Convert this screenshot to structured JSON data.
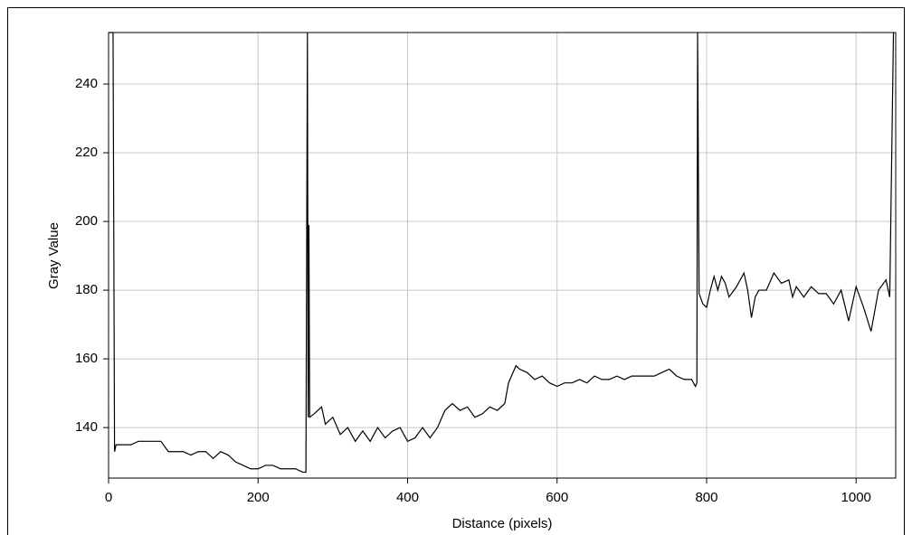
{
  "chart_data": {
    "type": "line",
    "x_label": "Distance (pixels)",
    "y_label": "Gray Value",
    "x": [
      0,
      6,
      7,
      8,
      10,
      30,
      40,
      70,
      80,
      100,
      110,
      120,
      130,
      140,
      150,
      160,
      170,
      180,
      190,
      200,
      210,
      220,
      230,
      240,
      250,
      260,
      264,
      266,
      267,
      268,
      269,
      275,
      285,
      290,
      300,
      310,
      320,
      330,
      340,
      350,
      360,
      370,
      380,
      390,
      400,
      410,
      420,
      430,
      440,
      450,
      460,
      470,
      480,
      490,
      500,
      510,
      520,
      530,
      535,
      545,
      550,
      560,
      570,
      580,
      590,
      600,
      610,
      620,
      630,
      640,
      650,
      660,
      670,
      680,
      690,
      700,
      710,
      720,
      730,
      740,
      750,
      760,
      770,
      780,
      785,
      787,
      788,
      789,
      790,
      795,
      800,
      805,
      810,
      815,
      820,
      825,
      830,
      840,
      850,
      855,
      860,
      865,
      870,
      880,
      890,
      900,
      910,
      915,
      920,
      930,
      940,
      950,
      960,
      970,
      980,
      990,
      1000,
      1010,
      1020,
      1030,
      1040,
      1045,
      1050
    ],
    "values": [
      255,
      255,
      195,
      133,
      135,
      135,
      136,
      136,
      133,
      133,
      132,
      133,
      133,
      131,
      133,
      132,
      130,
      129,
      128,
      128,
      129,
      129,
      128,
      128,
      128,
      127,
      127,
      255,
      143,
      199,
      143,
      144,
      146,
      141,
      143,
      138,
      140,
      136,
      139,
      136,
      140,
      137,
      139,
      140,
      136,
      137,
      140,
      137,
      140,
      145,
      147,
      145,
      146,
      143,
      144,
      146,
      145,
      147,
      153,
      158,
      157,
      156,
      154,
      155,
      153,
      152,
      153,
      153,
      154,
      153,
      155,
      154,
      154,
      155,
      154,
      155,
      155,
      155,
      155,
      156,
      157,
      155,
      154,
      154,
      152,
      153,
      255,
      216,
      179,
      176,
      175,
      180,
      184,
      180,
      184,
      182,
      178,
      181,
      185,
      180,
      172,
      178,
      180,
      180,
      185,
      182,
      183,
      178,
      181,
      178,
      181,
      179,
      179,
      176,
      180,
      171,
      181,
      175,
      168,
      180,
      183,
      178,
      255
    ],
    "color": "#000000",
    "xlim": [
      0,
      1053
    ],
    "ylim": [
      125.3,
      255
    ],
    "xticks": [
      0,
      200,
      400,
      600,
      800,
      1000
    ],
    "yticks": [
      140,
      160,
      180,
      200,
      220,
      240
    ],
    "grid": true
  }
}
